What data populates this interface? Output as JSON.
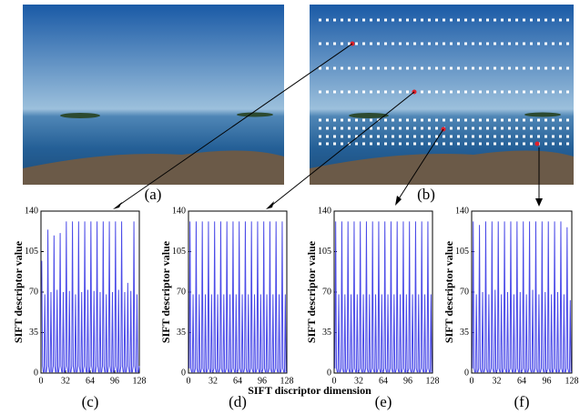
{
  "panel_labels": [
    "(a)",
    "(b)"
  ],
  "chart_data": [
    {
      "type": "line",
      "caption": "(c)",
      "ylabel": "SIFT descriptor value",
      "color": "#4a4ae8",
      "xlim": [
        0,
        128
      ],
      "ylim": [
        0,
        140
      ],
      "xticks": [
        0,
        32,
        64,
        96,
        128
      ],
      "yticks": [
        0,
        35,
        70,
        105,
        140
      ],
      "x": [
        1,
        2,
        3,
        4,
        5,
        6,
        7,
        8,
        9,
        10,
        11,
        12,
        13,
        14,
        15,
        16,
        17,
        18,
        19,
        20,
        21,
        22,
        23,
        24,
        25,
        26,
        27,
        28,
        29,
        30,
        31,
        32,
        33,
        34,
        35,
        36,
        37,
        38,
        39,
        40,
        41,
        42,
        43,
        44,
        45,
        46,
        47,
        48,
        49,
        50,
        51,
        52,
        53,
        54,
        55,
        56,
        57,
        58,
        59,
        60,
        61,
        62,
        63,
        64,
        65,
        66,
        67,
        68,
        69,
        70,
        71,
        72,
        73,
        74,
        75,
        76,
        77,
        78,
        79,
        80,
        81,
        82,
        83,
        84,
        85,
        86,
        87,
        88,
        89,
        90,
        91,
        92,
        93,
        94,
        95,
        96,
        97,
        98,
        99,
        100,
        101,
        102,
        103,
        104,
        105,
        106,
        107,
        108,
        109,
        110,
        111,
        112,
        113,
        114,
        115,
        116,
        117,
        118,
        119,
        120,
        121,
        122,
        123,
        124,
        125,
        126,
        127,
        128
      ],
      "values": [
        97,
        6,
        1,
        1,
        68,
        1,
        1,
        6,
        124,
        6,
        1,
        1,
        70,
        1,
        1,
        6,
        119,
        6,
        1,
        1,
        72,
        1,
        1,
        6,
        121,
        6,
        1,
        1,
        70,
        1,
        1,
        6,
        131,
        6,
        1,
        1,
        71,
        1,
        1,
        6,
        131,
        6,
        1,
        1,
        68,
        1,
        1,
        6,
        131,
        6,
        1,
        1,
        70,
        1,
        1,
        6,
        131,
        6,
        1,
        1,
        72,
        1,
        1,
        6,
        131,
        6,
        1,
        1,
        71,
        1,
        1,
        6,
        131,
        6,
        1,
        1,
        70,
        1,
        1,
        6,
        131,
        6,
        1,
        1,
        68,
        1,
        1,
        6,
        131,
        6,
        1,
        1,
        70,
        1,
        1,
        6,
        131,
        6,
        1,
        1,
        72,
        1,
        1,
        6,
        131,
        6,
        1,
        1,
        70,
        1,
        1,
        6,
        78,
        6,
        1,
        1,
        71,
        1,
        1,
        6,
        131,
        6,
        1,
        1,
        68,
        1,
        1,
        6
      ]
    },
    {
      "type": "line",
      "caption": "(d)",
      "ylabel": "SIFT descriptor value",
      "xlabel": "SIFT discriptor dimension",
      "color": "#4a4ae8",
      "xlim": [
        0,
        128
      ],
      "ylim": [
        0,
        140
      ],
      "xticks": [
        0,
        32,
        64,
        96,
        128
      ],
      "yticks": [
        0,
        35,
        70,
        105,
        140
      ],
      "x": [
        1,
        2,
        3,
        4,
        5,
        6,
        7,
        8,
        9,
        10,
        11,
        12,
        13,
        14,
        15,
        16,
        17,
        18,
        19,
        20,
        21,
        22,
        23,
        24,
        25,
        26,
        27,
        28,
        29,
        30,
        31,
        32,
        33,
        34,
        35,
        36,
        37,
        38,
        39,
        40,
        41,
        42,
        43,
        44,
        45,
        46,
        47,
        48,
        49,
        50,
        51,
        52,
        53,
        54,
        55,
        56,
        57,
        58,
        59,
        60,
        61,
        62,
        63,
        64,
        65,
        66,
        67,
        68,
        69,
        70,
        71,
        72,
        73,
        74,
        75,
        76,
        77,
        78,
        79,
        80,
        81,
        82,
        83,
        84,
        85,
        86,
        87,
        88,
        89,
        90,
        91,
        92,
        93,
        94,
        95,
        96,
        97,
        98,
        99,
        100,
        101,
        102,
        103,
        104,
        105,
        106,
        107,
        108,
        109,
        110,
        111,
        112,
        113,
        114,
        115,
        116,
        117,
        118,
        119,
        120,
        121,
        122,
        123,
        124,
        125,
        126,
        127,
        128
      ],
      "values": [
        4,
        131,
        4,
        1,
        1,
        68,
        1,
        1,
        4,
        131,
        4,
        1,
        1,
        68,
        1,
        1,
        4,
        131,
        4,
        1,
        1,
        68,
        1,
        1,
        4,
        131,
        4,
        1,
        1,
        68,
        1,
        1,
        4,
        131,
        4,
        1,
        1,
        68,
        1,
        1,
        4,
        131,
        4,
        1,
        1,
        68,
        1,
        1,
        4,
        131,
        4,
        1,
        1,
        68,
        1,
        1,
        4,
        131,
        4,
        1,
        1,
        68,
        1,
        1,
        4,
        131,
        4,
        1,
        1,
        68,
        1,
        1,
        4,
        131,
        4,
        1,
        1,
        68,
        1,
        1,
        4,
        131,
        4,
        1,
        1,
        68,
        1,
        1,
        4,
        131,
        4,
        1,
        1,
        68,
        1,
        1,
        4,
        131,
        4,
        1,
        1,
        68,
        1,
        1,
        4,
        131,
        4,
        1,
        1,
        68,
        1,
        1,
        4,
        131,
        4,
        1,
        1,
        68,
        1,
        1,
        4,
        131,
        4,
        1,
        1,
        68,
        1,
        1
      ]
    },
    {
      "type": "line",
      "caption": "(e)",
      "ylabel": "SIFT descriptor value",
      "color": "#4a4ae8",
      "xlim": [
        0,
        128
      ],
      "ylim": [
        0,
        140
      ],
      "xticks": [
        0,
        32,
        64,
        96,
        128
      ],
      "yticks": [
        0,
        35,
        70,
        105,
        140
      ],
      "x": [
        1,
        2,
        3,
        4,
        5,
        6,
        7,
        8,
        9,
        10,
        11,
        12,
        13,
        14,
        15,
        16,
        17,
        18,
        19,
        20,
        21,
        22,
        23,
        24,
        25,
        26,
        27,
        28,
        29,
        30,
        31,
        32,
        33,
        34,
        35,
        36,
        37,
        38,
        39,
        40,
        41,
        42,
        43,
        44,
        45,
        46,
        47,
        48,
        49,
        50,
        51,
        52,
        53,
        54,
        55,
        56,
        57,
        58,
        59,
        60,
        61,
        62,
        63,
        64,
        65,
        66,
        67,
        68,
        69,
        70,
        71,
        72,
        73,
        74,
        75,
        76,
        77,
        78,
        79,
        80,
        81,
        82,
        83,
        84,
        85,
        86,
        87,
        88,
        89,
        90,
        91,
        92,
        93,
        94,
        95,
        96,
        97,
        98,
        99,
        100,
        101,
        102,
        103,
        104,
        105,
        106,
        107,
        108,
        109,
        110,
        111,
        112,
        113,
        114,
        115,
        116,
        117,
        118,
        119,
        120,
        121,
        122,
        123,
        124,
        125,
        126,
        127,
        128
      ],
      "values": [
        4,
        131,
        4,
        1,
        1,
        68,
        1,
        1,
        4,
        131,
        4,
        1,
        1,
        68,
        1,
        1,
        4,
        131,
        4,
        1,
        1,
        68,
        1,
        1,
        4,
        131,
        4,
        1,
        1,
        68,
        1,
        1,
        4,
        131,
        4,
        1,
        1,
        68,
        1,
        1,
        4,
        131,
        4,
        1,
        1,
        68,
        1,
        1,
        4,
        131,
        4,
        1,
        1,
        68,
        1,
        1,
        4,
        131,
        4,
        1,
        1,
        68,
        1,
        1,
        4,
        131,
        4,
        1,
        1,
        68,
        1,
        1,
        4,
        131,
        4,
        1,
        1,
        68,
        1,
        1,
        4,
        131,
        4,
        1,
        1,
        68,
        1,
        1,
        4,
        131,
        4,
        1,
        1,
        68,
        1,
        1,
        4,
        131,
        4,
        1,
        1,
        68,
        1,
        1,
        4,
        131,
        4,
        1,
        1,
        68,
        1,
        1,
        4,
        131,
        4,
        1,
        1,
        68,
        1,
        1,
        4,
        131,
        4,
        1,
        1,
        68,
        1,
        1
      ]
    },
    {
      "type": "line",
      "caption": "(f)",
      "ylabel": "SIFT descriptor value",
      "color": "#4a4ae8",
      "xlim": [
        0,
        128
      ],
      "ylim": [
        0,
        140
      ],
      "xticks": [
        0,
        32,
        64,
        96,
        128
      ],
      "yticks": [
        0,
        35,
        70,
        105,
        140
      ],
      "x": [
        1,
        2,
        3,
        4,
        5,
        6,
        7,
        8,
        9,
        10,
        11,
        12,
        13,
        14,
        15,
        16,
        17,
        18,
        19,
        20,
        21,
        22,
        23,
        24,
        25,
        26,
        27,
        28,
        29,
        30,
        31,
        32,
        33,
        34,
        35,
        36,
        37,
        38,
        39,
        40,
        41,
        42,
        43,
        44,
        45,
        46,
        47,
        48,
        49,
        50,
        51,
        52,
        53,
        54,
        55,
        56,
        57,
        58,
        59,
        60,
        61,
        62,
        63,
        64,
        65,
        66,
        67,
        68,
        69,
        70,
        71,
        72,
        73,
        74,
        75,
        76,
        77,
        78,
        79,
        80,
        81,
        82,
        83,
        84,
        85,
        86,
        87,
        88,
        89,
        90,
        91,
        92,
        93,
        94,
        95,
        96,
        97,
        98,
        99,
        100,
        101,
        102,
        103,
        104,
        105,
        106,
        107,
        108,
        109,
        110,
        111,
        112,
        113,
        114,
        115,
        116,
        117,
        118,
        119,
        120,
        121,
        122,
        123,
        124,
        125,
        126,
        127,
        128
      ],
      "values": [
        4,
        131,
        4,
        1,
        1,
        68,
        1,
        1,
        4,
        128,
        4,
        1,
        1,
        70,
        1,
        1,
        4,
        131,
        4,
        1,
        1,
        68,
        1,
        1,
        4,
        131,
        4,
        1,
        1,
        72,
        1,
        1,
        4,
        131,
        4,
        1,
        1,
        68,
        1,
        1,
        4,
        131,
        4,
        1,
        1,
        70,
        1,
        1,
        4,
        131,
        4,
        1,
        1,
        68,
        1,
        1,
        4,
        131,
        4,
        1,
        1,
        70,
        1,
        1,
        4,
        131,
        4,
        1,
        1,
        68,
        1,
        1,
        4,
        131,
        4,
        1,
        1,
        72,
        1,
        1,
        4,
        131,
        4,
        1,
        1,
        68,
        1,
        1,
        4,
        131,
        4,
        1,
        1,
        70,
        1,
        1,
        4,
        131,
        4,
        1,
        1,
        68,
        1,
        1,
        4,
        131,
        4,
        1,
        1,
        70,
        1,
        1,
        4,
        131,
        4,
        1,
        1,
        68,
        1,
        1,
        4,
        126,
        4,
        1,
        1,
        63,
        1,
        1
      ]
    }
  ]
}
